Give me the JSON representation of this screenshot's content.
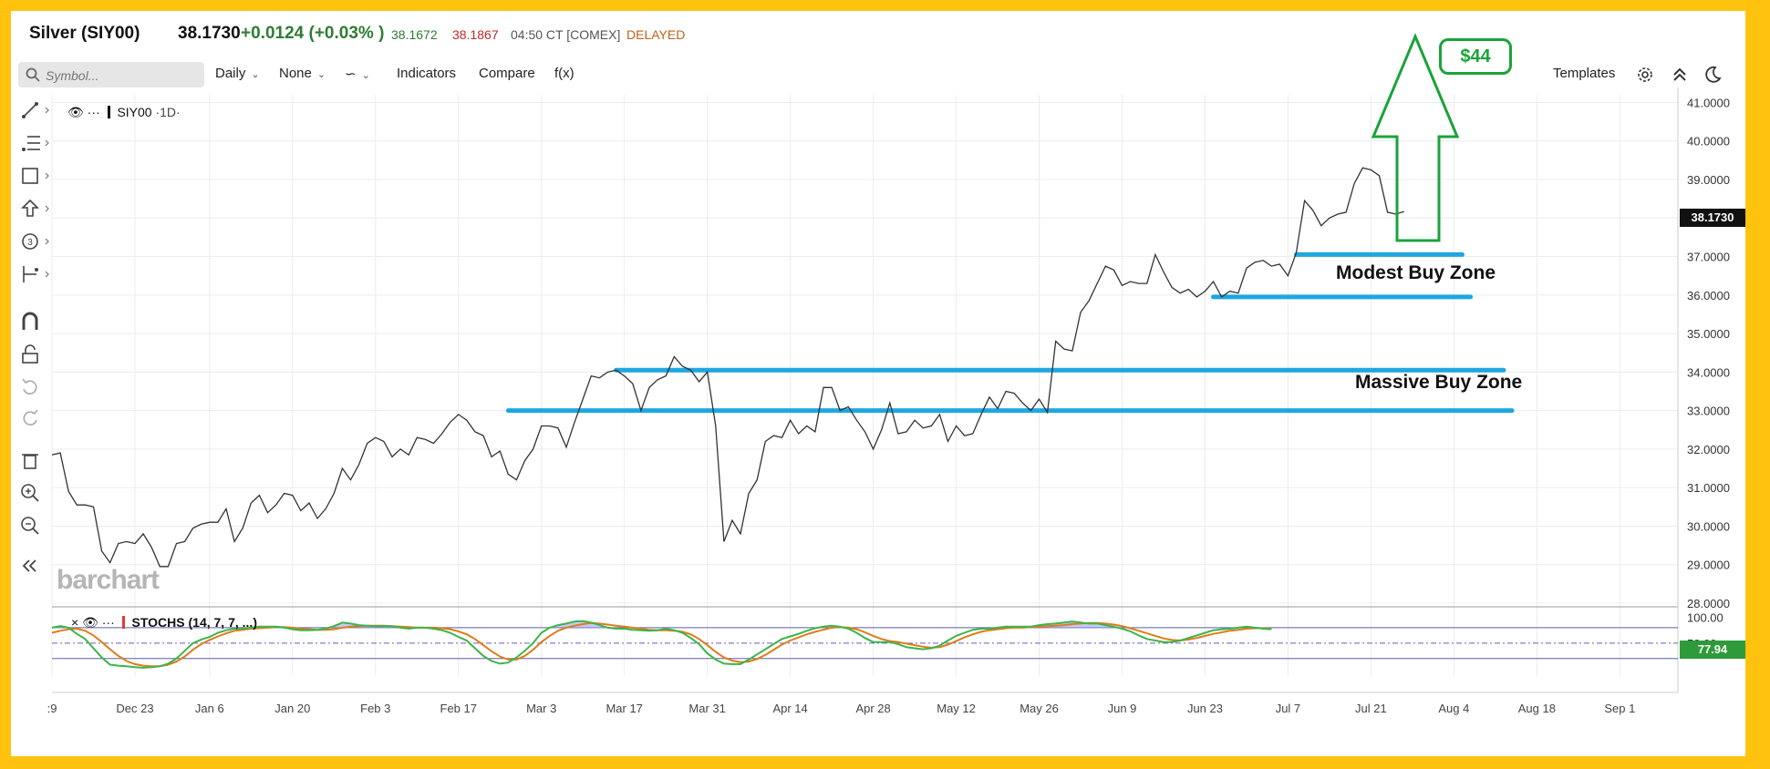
{
  "header": {
    "title": "Silver (SIY00)",
    "last": "38.1730",
    "change": "+0.0124 (+0.03% )",
    "low": "38.1672",
    "high": "38.1867",
    "time": "04:50 CT [COMEX]",
    "status": "DELAYED"
  },
  "toolbar": {
    "search_placeholder": "Symbol...",
    "interval": "Daily",
    "overlay": "None",
    "indicators": "Indicators",
    "compare": "Compare",
    "fx": "f(x)",
    "templates": "Templates"
  },
  "legend": {
    "symbol": "SIY00",
    "interval": "·1D·"
  },
  "stoch": {
    "label": "STOCHS (14, 7, 7, ...)",
    "value": "77.94"
  },
  "last_price_tag": "38.1730",
  "watermark": "barchart",
  "annotations": {
    "target": "$44",
    "zone_modest": "Modest Buy Zone",
    "zone_massive": "Massive Buy Zone"
  },
  "colors": {
    "frame": "#ffc20e",
    "zone_line": "#1ea7e1",
    "arrow": "#1aa33a",
    "price": "#333333",
    "stoch_k": "#3cb44b",
    "stoch_d": "#e07b1a"
  },
  "chart_data": {
    "type": "line",
    "title": "Silver (SIY00)",
    "y_ticks": [
      "41.0000",
      "40.0000",
      "39.0000",
      "38.0000",
      "37.0000",
      "36.0000",
      "35.0000",
      "34.0000",
      "33.0000",
      "32.0000",
      "31.0000",
      "30.0000",
      "29.0000",
      "28.0000"
    ],
    "ylim": [
      28,
      41.2
    ],
    "x_ticks": [
      ":9",
      "Dec 23",
      "Jan 6",
      "Jan 20",
      "Feb 3",
      "Feb 17",
      "Mar 3",
      "Mar 17",
      "Mar 31",
      "Apr 14",
      "Apr 28",
      "May 12",
      "May 26",
      "Jun 9",
      "Jun 23",
      "Jul 7",
      "Jul 21",
      "Aug 4",
      "Aug 18",
      "Sep 1"
    ],
    "x_tick_index": [
      0,
      10,
      19,
      29,
      39,
      49,
      59,
      69,
      79,
      89,
      99,
      109,
      119,
      129,
      139,
      149,
      159,
      169,
      179,
      189
    ],
    "series": [
      {
        "values": [
          31.85,
          31.9,
          30.9,
          30.55,
          30.55,
          30.5,
          29.35,
          29.05,
          29.55,
          29.6,
          29.55,
          29.8,
          29.45,
          28.95,
          28.95,
          29.55,
          29.6,
          29.95,
          30.05,
          30.1,
          30.1,
          30.45,
          29.6,
          29.95,
          30.6,
          30.8,
          30.35,
          30.55,
          30.85,
          30.8,
          30.4,
          30.6,
          30.2,
          30.45,
          30.85,
          31.5,
          31.2,
          31.6,
          32.15,
          32.3,
          32.2,
          31.8,
          32.0,
          31.85,
          32.3,
          32.25,
          32.15,
          32.4,
          32.7,
          32.9,
          32.75,
          32.45,
          32.35,
          31.8,
          31.95,
          31.35,
          31.2,
          31.7,
          32.0,
          32.6,
          32.6,
          32.55,
          32.05,
          32.7,
          33.3,
          33.9,
          33.85,
          34.0,
          34.05,
          33.9,
          33.7,
          33.0,
          33.6,
          33.8,
          33.9,
          34.4,
          34.15,
          34.05,
          33.75,
          34.0,
          32.6,
          29.6,
          30.15,
          29.8,
          30.85,
          31.2,
          32.2,
          32.35,
          32.3,
          32.75,
          32.4,
          32.6,
          32.45,
          33.6,
          33.6,
          33.0,
          33.1,
          32.75,
          32.45,
          32.0,
          32.5,
          33.2,
          32.4,
          32.45,
          32.75,
          32.55,
          32.6,
          32.9,
          32.2,
          32.6,
          32.35,
          32.4,
          32.9,
          33.35,
          33.05,
          33.5,
          33.45,
          33.2,
          33.0,
          33.3,
          32.95,
          34.8,
          34.6,
          34.55,
          35.55,
          35.85,
          36.3,
          36.75,
          36.65,
          36.25,
          36.35,
          36.3,
          36.3,
          37.05,
          36.6,
          36.2,
          36.05,
          36.15,
          35.95,
          36.1,
          36.35,
          35.95,
          36.1,
          36.05,
          36.7,
          36.85,
          36.9,
          36.75,
          36.8,
          36.5,
          37.1,
          38.45,
          38.2,
          37.8,
          38.0,
          38.1,
          38.15,
          38.9,
          39.3,
          39.25,
          39.1,
          38.15,
          38.1,
          38.17
        ]
      },
      {
        "name": "",
        "values": []
      }
    ],
    "stoch_ylim": [
      0,
      100
    ],
    "stoch_ticks": [
      "100.00",
      "50.00"
    ],
    "stoch_k": [
      80,
      83,
      80,
      68,
      58,
      40,
      22,
      8,
      6,
      5,
      3,
      2,
      3,
      5,
      10,
      20,
      35,
      50,
      57,
      62,
      70,
      75,
      78,
      78,
      80,
      82,
      82,
      82,
      80,
      77,
      75,
      75,
      76,
      78,
      83,
      90,
      88,
      85,
      84,
      83,
      83,
      83,
      80,
      78,
      80,
      80,
      78,
      75,
      70,
      62,
      55,
      40,
      25,
      15,
      10,
      12,
      22,
      35,
      50,
      70,
      80,
      85,
      88,
      92,
      93,
      90,
      85,
      80,
      78,
      78,
      76,
      75,
      74,
      75,
      78,
      75,
      70,
      60,
      48,
      30,
      18,
      10,
      9,
      9,
      18,
      28,
      38,
      48,
      58,
      63,
      68,
      74,
      79,
      82,
      84,
      82,
      78,
      70,
      60,
      52,
      52,
      52,
      48,
      42,
      40,
      38,
      40,
      45,
      55,
      64,
      70,
      76,
      78,
      78,
      80,
      82,
      82,
      82,
      82,
      85,
      87,
      88,
      90,
      92,
      90,
      88,
      88,
      85,
      82,
      78,
      73,
      65,
      58,
      55,
      52,
      52,
      55,
      60,
      65,
      70,
      75,
      77,
      78,
      80,
      82,
      80,
      78,
      77
    ],
    "stoch_d": [
      70,
      74,
      77,
      78,
      74,
      65,
      52,
      38,
      25,
      15,
      9,
      6,
      5,
      5,
      8,
      14,
      24,
      37,
      48,
      56,
      63,
      69,
      74,
      76,
      78,
      79,
      80,
      81,
      81,
      80,
      78,
      77,
      76,
      76,
      77,
      80,
      82,
      83,
      84,
      84,
      84,
      83,
      82,
      81,
      80,
      80,
      80,
      79,
      77,
      73,
      67,
      58,
      46,
      34,
      24,
      18,
      18,
      25,
      37,
      52,
      64,
      74,
      80,
      84,
      87,
      89,
      88,
      86,
      84,
      82,
      80,
      78,
      76,
      75,
      75,
      74,
      72,
      67,
      58,
      46,
      33,
      22,
      16,
      13,
      14,
      19,
      27,
      37,
      47,
      55,
      61,
      67,
      72,
      76,
      80,
      81,
      80,
      77,
      71,
      64,
      58,
      54,
      52,
      49,
      46,
      43,
      41,
      42,
      47,
      54,
      61,
      67,
      72,
      75,
      77,
      79,
      80,
      80,
      81,
      82,
      83,
      84,
      85,
      87,
      88,
      89,
      89,
      88,
      86,
      83,
      79,
      74,
      69,
      64,
      59,
      56,
      55,
      57,
      60,
      64,
      68,
      71,
      74,
      76,
      78,
      79,
      79,
      78
    ]
  }
}
